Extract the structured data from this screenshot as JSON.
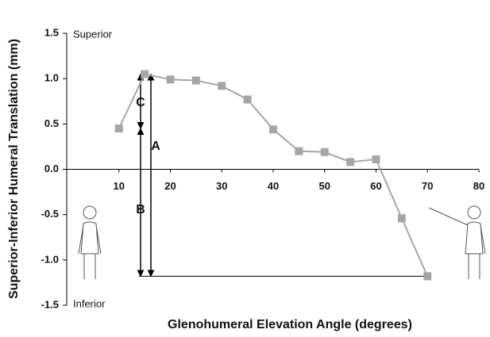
{
  "chart_data": {
    "type": "line",
    "x_label": "Glenohumeral Elevation Angle (degrees)",
    "y_label": "Superior-Inferior Humeral Translation (mm)",
    "annotations": [
      "Superior",
      "Inferior",
      "A",
      "B",
      "C"
    ],
    "x": [
      10,
      15,
      20,
      25,
      30,
      35,
      40,
      45,
      50,
      55,
      60,
      65,
      70
    ],
    "series": [
      {
        "color": "#a6a6a6",
        "values": [
          0.45,
          1.05,
          0.99,
          0.98,
          0.92,
          0.77,
          0.44,
          0.2,
          0.19,
          0.08,
          0.11,
          -0.54,
          -1.18
        ]
      }
    ],
    "xlim": [
      0,
      80
    ],
    "xticks": [
      10,
      20,
      30,
      40,
      50,
      60,
      70,
      80
    ],
    "ylim": [
      -1.5,
      1.5
    ],
    "yticks": [
      1.5,
      {
        "value": 1,
        "label": "1.0"
      },
      0.5,
      {
        "value": 0,
        "label": "0.0"
      },
      -0.5,
      {
        "value": -1,
        "label": "-1.0"
      },
      -1.5
    ],
    "grid": false
  }
}
